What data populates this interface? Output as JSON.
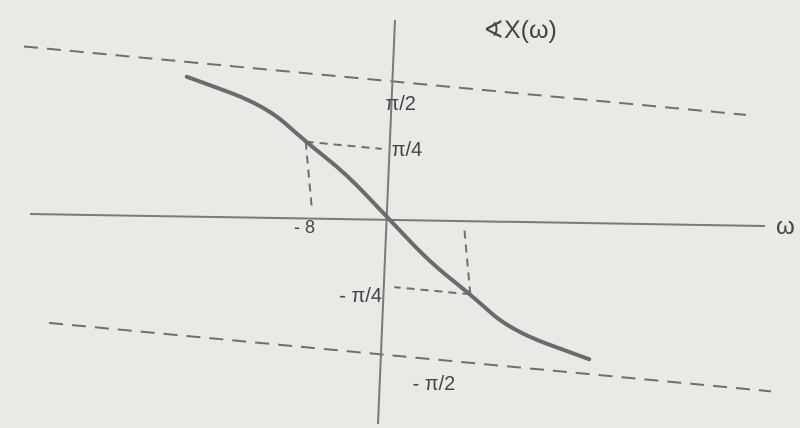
{
  "chart_data": {
    "type": "line",
    "title": "",
    "ylabel": "∢X(ω)",
    "xlabel": "ω",
    "series": [
      {
        "values": [
          [
            -20,
            1.4
          ],
          [
            -12,
            1.16
          ],
          [
            -8,
            0.785
          ],
          [
            -4,
            0.46
          ],
          [
            0,
            0
          ],
          [
            4,
            -0.46
          ],
          [
            8,
            -0.785
          ],
          [
            12,
            -1.16
          ],
          [
            20,
            -1.4
          ]
        ]
      }
    ],
    "x_ticks": [
      {
        "x": -8,
        "label": "- 8"
      }
    ],
    "y_ticks": [
      {
        "y": 1.5708,
        "label": "π/2"
      },
      {
        "y": 0.7854,
        "label": "π/4"
      },
      {
        "y": -0.7854,
        "label": "- π/4"
      },
      {
        "y": -1.5708,
        "label": "- π/2"
      }
    ],
    "asymptotes": [
      1.5708,
      -1.5708
    ],
    "guides": [
      {
        "x": -8,
        "y": 0.7854
      },
      {
        "x": 8,
        "y": -0.7854
      }
    ],
    "grid": false,
    "colors": {
      "curve": "#6b6b6b",
      "axes": "#7a7a7a",
      "dashes": "#6f6f6f",
      "text": "#444444"
    }
  }
}
